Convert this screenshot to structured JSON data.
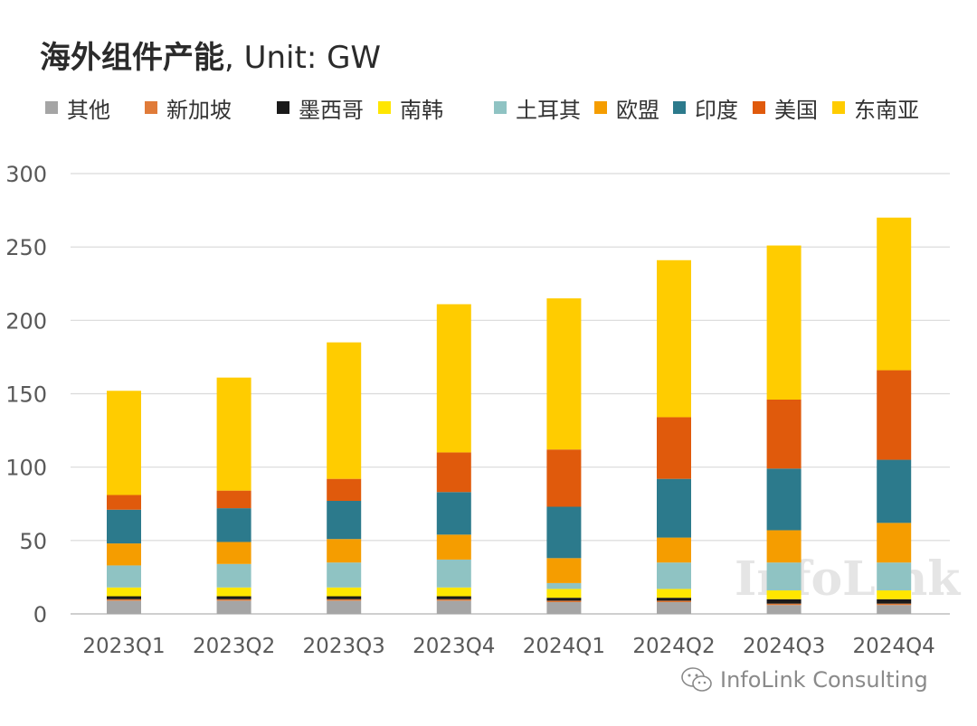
{
  "title": {
    "main": "海外组件产能",
    "unit": ", Unit: GW"
  },
  "watermark": "InfoLink",
  "footer": {
    "icon": "wechat-icon",
    "text": "InfoLink Consulting"
  },
  "chart_data": {
    "type": "bar",
    "stacked": true,
    "title": "海外组件产能, Unit: GW",
    "xlabel": "",
    "ylabel": "",
    "ylim": [
      0,
      300
    ],
    "yticks": [
      0,
      50,
      100,
      150,
      200,
      250,
      300
    ],
    "grid": true,
    "legend_position": "top",
    "categories": [
      "2023Q1",
      "2023Q2",
      "2023Q3",
      "2023Q4",
      "2024Q1",
      "2024Q2",
      "2024Q3",
      "2024Q4"
    ],
    "series": [
      {
        "name": "其他",
        "color": "#a5a5a5",
        "values": [
          9,
          9,
          9,
          9,
          8,
          8,
          6,
          6
        ]
      },
      {
        "name": "新加坡",
        "color": "#e07b39",
        "values": [
          1,
          1,
          1,
          1,
          1,
          1,
          1,
          1
        ]
      },
      {
        "name": "墨西哥",
        "color": "#1a1a1a",
        "values": [
          2,
          2,
          2,
          2,
          2,
          2,
          3,
          3
        ]
      },
      {
        "name": "南韩",
        "color": "#ffe600",
        "values": [
          6,
          6,
          6,
          6,
          6,
          6,
          6,
          6
        ]
      },
      {
        "name": "土耳其",
        "color": "#8fc3c3",
        "values": [
          15,
          16,
          17,
          19,
          4,
          18,
          19,
          19
        ]
      },
      {
        "name": "欧盟",
        "color": "#f59d00",
        "values": [
          15,
          15,
          16,
          17,
          17,
          17,
          22,
          27
        ]
      },
      {
        "name": "印度",
        "color": "#2c7a8c",
        "values": [
          23,
          23,
          26,
          29,
          35,
          40,
          42,
          43
        ]
      },
      {
        "name": "美国",
        "color": "#e05a0c",
        "values": [
          10,
          12,
          15,
          27,
          39,
          42,
          47,
          61
        ]
      },
      {
        "name": "东南亚",
        "color": "#ffcc00",
        "values": [
          71,
          77,
          93,
          101,
          103,
          107,
          105,
          104
        ]
      }
    ]
  }
}
